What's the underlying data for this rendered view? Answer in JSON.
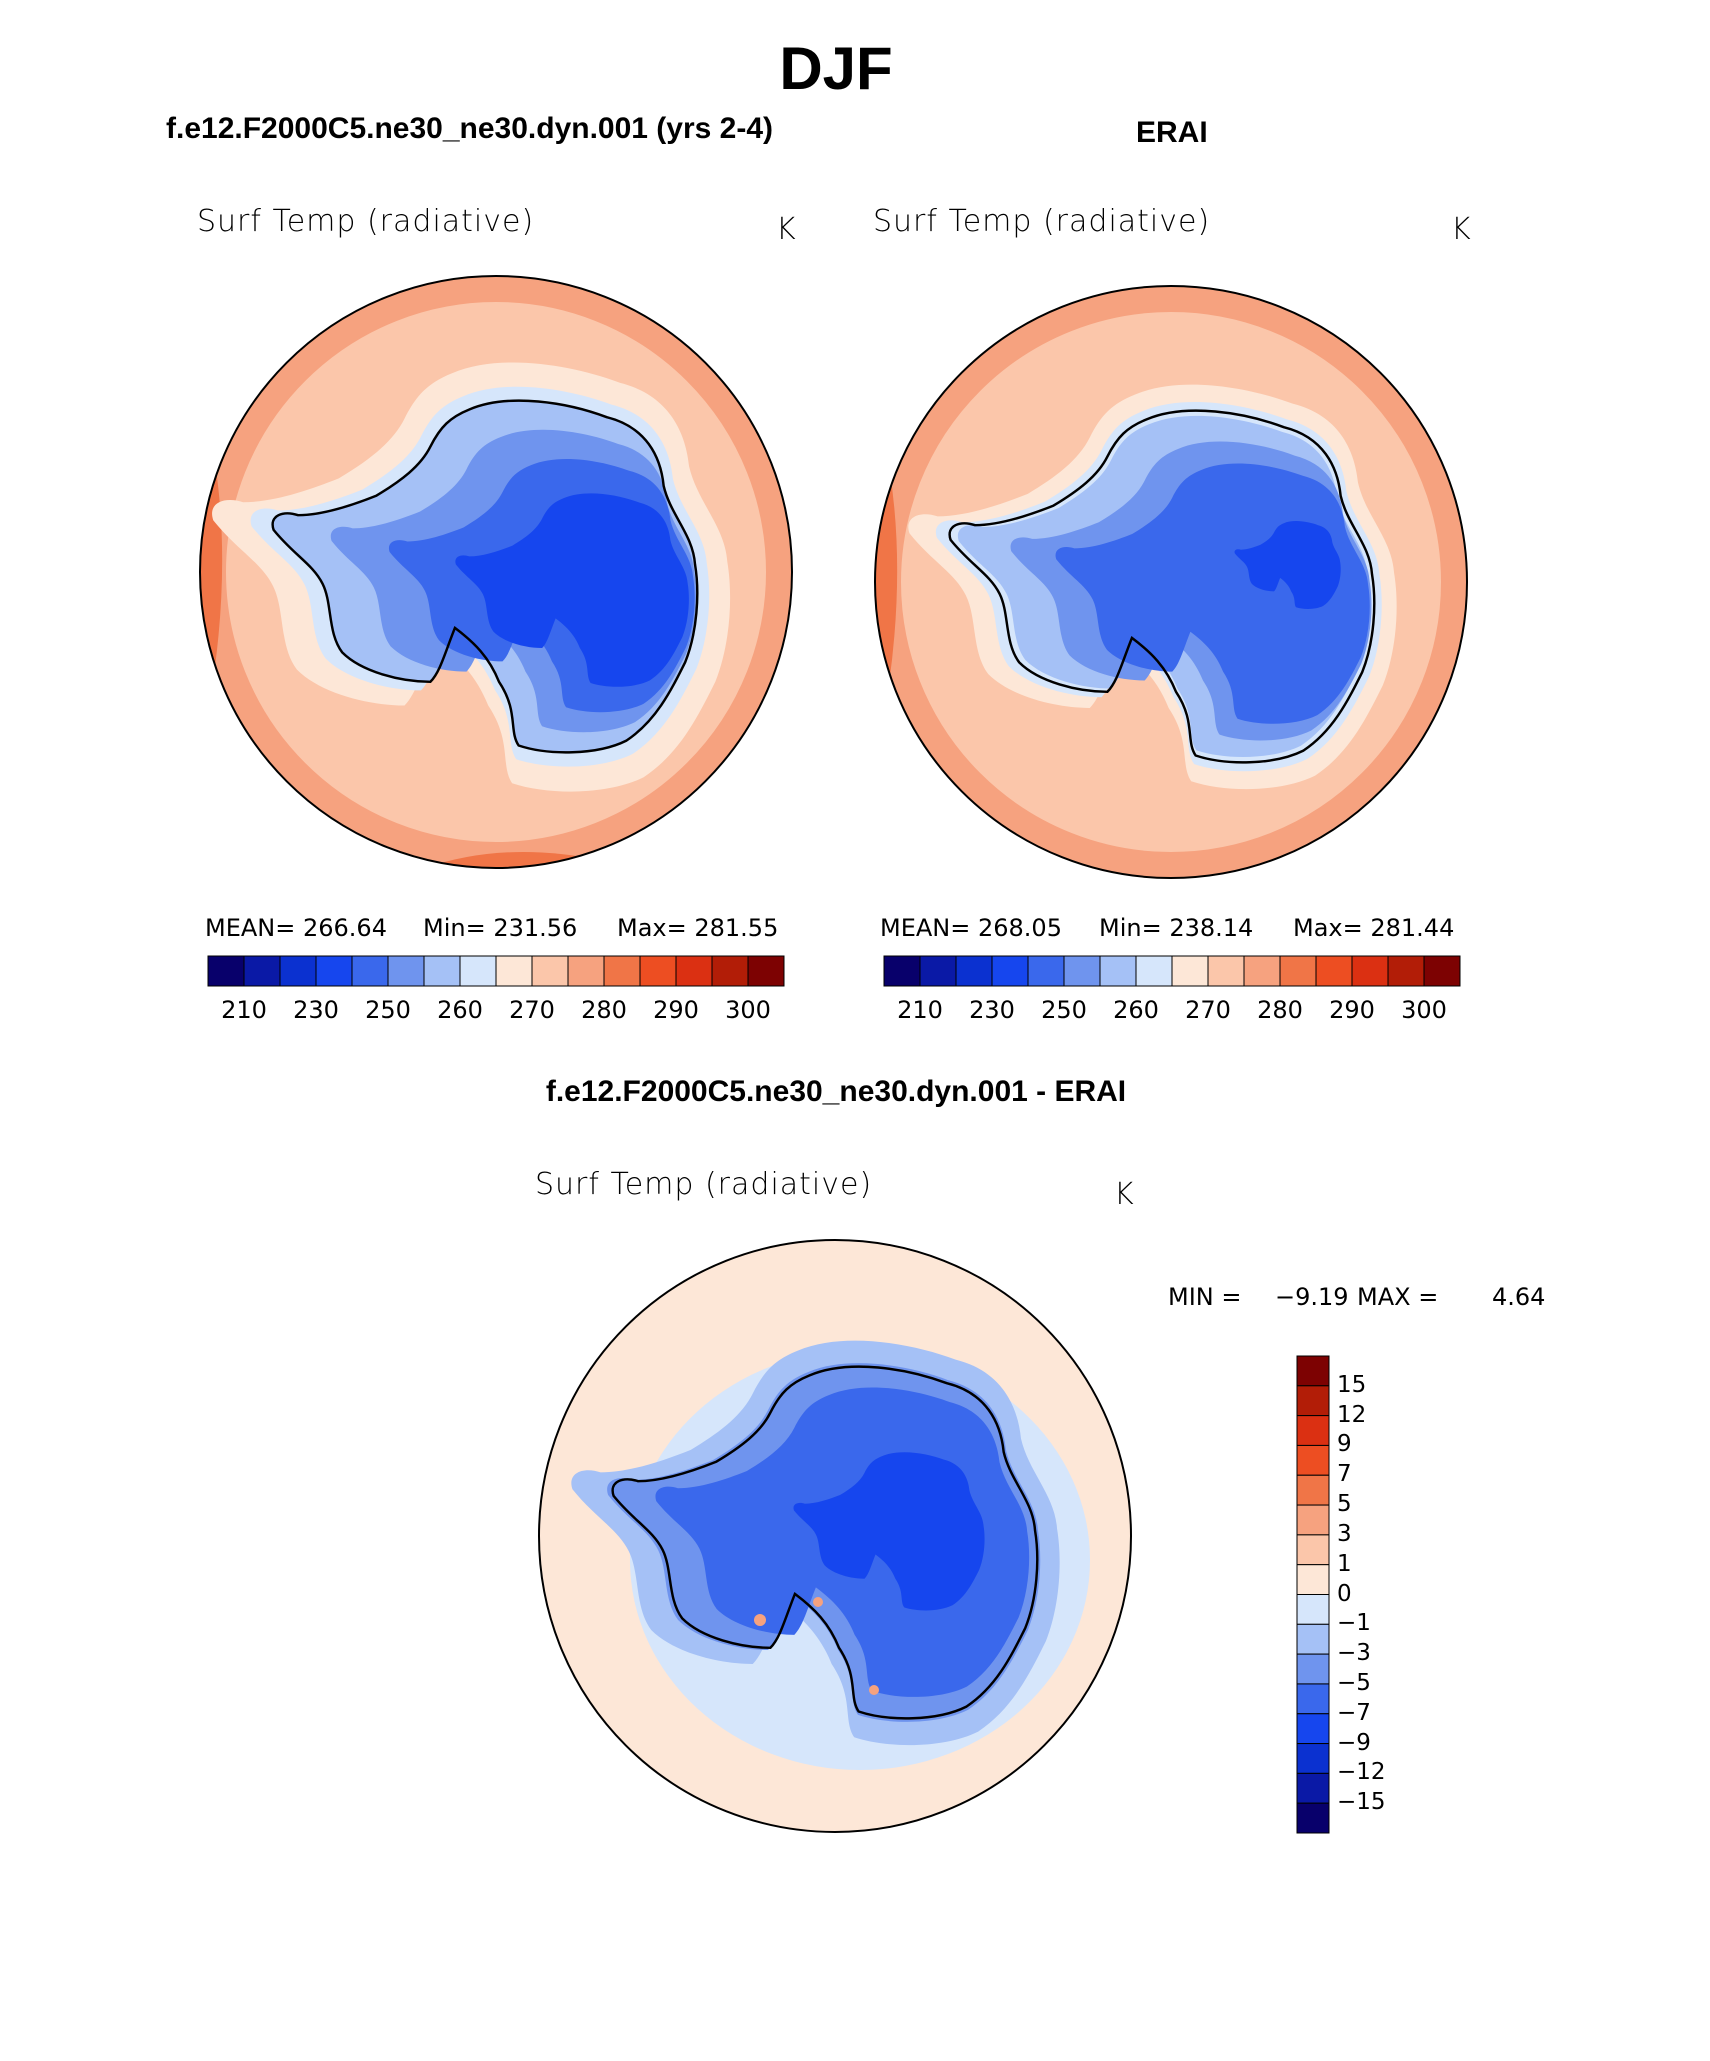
{
  "figure": {
    "title": "DJF",
    "panel1_title": "f.e12.F2000C5.ne30_ne30.dyn.001 (yrs 2-4)",
    "panel2_title": "ERAI",
    "diff_title": "f.e12.F2000C5.ne30_ne30.dyn.001 - ERAI"
  },
  "panels": [
    {
      "variable": "Surf Temp (radiative)",
      "units": "K",
      "stats": {
        "mean": "MEAN= 266.64",
        "min": "Min= 231.56",
        "max": "Max= 281.55"
      }
    },
    {
      "variable": "Surf Temp (radiative)",
      "units": "K",
      "stats": {
        "mean": "MEAN= 268.05",
        "min": "Min= 238.14",
        "max": "Max= 281.44"
      }
    }
  ],
  "difference_panel": {
    "variable": "Surf Temp (radiative)",
    "units": "K",
    "stats": {
      "min_label": "MIN =",
      "min_value": "−9.19",
      "max_label": "MAX =",
      "max_value": "4.64"
    }
  },
  "colorbar_abs": {
    "tick_labels": [
      "210",
      "230",
      "250",
      "260",
      "270",
      "280",
      "290",
      "300"
    ],
    "colors": [
      "#08006b",
      "#0a19a6",
      "#0b31d0",
      "#1646ee",
      "#3a68ec",
      "#6f94ee",
      "#a5c1f6",
      "#d6e6fb",
      "#fde7d7",
      "#fbc6aa",
      "#f6a27f",
      "#f07547",
      "#ed4e22",
      "#db3012",
      "#b21d07",
      "#7d0202"
    ]
  },
  "colorbar_diff": {
    "tick_labels": [
      "15",
      "12",
      "9",
      "7",
      "5",
      "3",
      "1",
      "0",
      "−1",
      "−3",
      "−5",
      "−7",
      "−9",
      "−12",
      "−15"
    ],
    "colors_top_to_bottom": [
      "#7d0202",
      "#b21d07",
      "#db3012",
      "#ed4e22",
      "#f07547",
      "#f6a27f",
      "#fbc6aa",
      "#fde7d7",
      "#d6e6fb",
      "#a5c1f6",
      "#6f94ee",
      "#3a68ec",
      "#1646ee",
      "#0b31d0",
      "#0a19a6",
      "#08006b"
    ]
  },
  "map_colors": {
    "ocean_warm": "#fbc6aa",
    "ocean_warmer": "#f6a27f",
    "ocean_hot": "#f07547",
    "coast_pale": "#fde7d7",
    "ice_light": "#d6e6fb",
    "ice_mid": "#a5c1f6",
    "ice_mid2": "#6f94ee",
    "ice_cold": "#3a68ec",
    "ice_coldest": "#1646ee",
    "diff_bg": "#fde7d7"
  }
}
